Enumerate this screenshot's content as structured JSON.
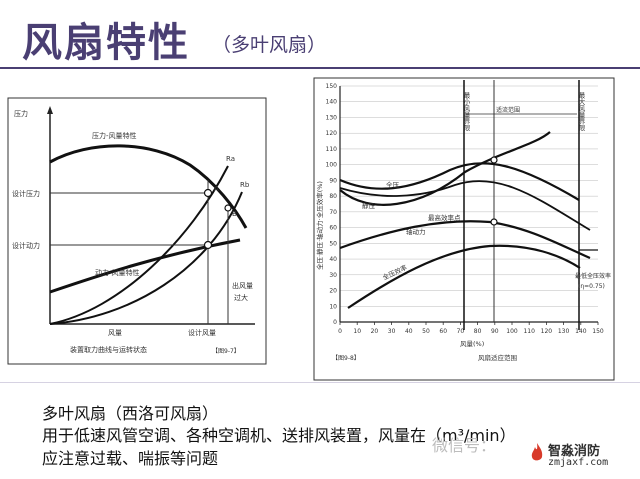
{
  "slide": {
    "title": "风扇特性",
    "subtitle": "（多叶风扇）",
    "accent_color": "#4a3f73"
  },
  "left_diagram": {
    "y_label": "压力",
    "curve_label_pressure": "压力-风量特性",
    "curve_label_power": "动力-风量特性",
    "design_pressure_label": "设计压力",
    "design_power_label": "设计动力",
    "point_a_label": "A",
    "point_b_label": "B",
    "curve_ra_label": "Ra",
    "curve_rb_label": "Rb",
    "excess_flow_label_1": "出风量",
    "excess_flow_label_2": "过大",
    "x_label": "风量",
    "design_flow_label": "设计风量",
    "caption": "装置取力曲线与运转状态",
    "figure_tag": "【图9-7】"
  },
  "right_diagram": {
    "y_ticks": [
      "150",
      "140",
      "130",
      "120",
      "110",
      "100",
      "90",
      "80",
      "70",
      "60",
      "50",
      "40",
      "30",
      "20",
      "10",
      "0"
    ],
    "x_ticks": [
      "0",
      "10",
      "20",
      "30",
      "40",
      "50",
      "60",
      "70",
      "80",
      "90",
      "100",
      "110",
      "120",
      "130",
      "140",
      "150"
    ],
    "y_axis_label": "全压·静压·轴动力·全压效率(%)",
    "min_flow_label": "最小风量界限",
    "max_flow_label": "最大风量界限",
    "operating_range_label": "适流范围",
    "curve_total_pressure": "全压",
    "curve_static_pressure": "静压",
    "curve_shaft_power": "轴动力",
    "curve_efficiency": "全压效率",
    "peak_efficiency_label": "最高效率点",
    "bottom_label_1": "最低全压效率",
    "bottom_label_2": "(η=0.75)",
    "x_label": "风量(%)",
    "caption": "风扇适应范围",
    "figure_tag": "【图9-8】"
  },
  "footer": {
    "line1": "多叶风扇（西洛可风扇）",
    "line2": "用于低速风管空调、各种空调机、送排风装置，风量在（m³/min）",
    "line3": "应注意过载、喘振等问题"
  },
  "watermark": {
    "text": "微信号：",
    "logo_name": "智淼消防",
    "logo_url": "zmjaxf.com"
  }
}
